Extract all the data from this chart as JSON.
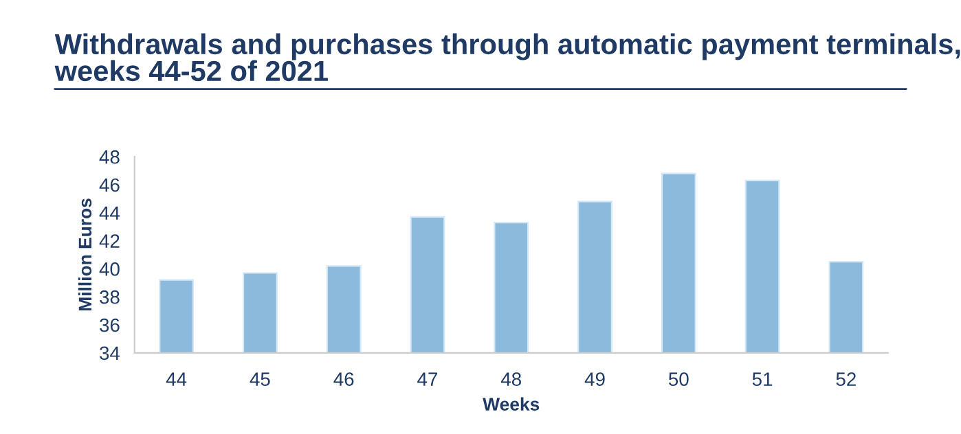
{
  "chart_data": {
    "type": "bar",
    "title": "Withdrawals and purchases through automatic payment terminals,\nweeks 44-52 of 2021",
    "xlabel": "Weeks",
    "ylabel": "Million Euros",
    "categories": [
      "44",
      "45",
      "46",
      "47",
      "48",
      "49",
      "50",
      "51",
      "52"
    ],
    "values": [
      39.2,
      39.7,
      40.2,
      43.7,
      43.3,
      44.8,
      46.8,
      46.3,
      40.5
    ],
    "color": "#8bbadc",
    "ylim": [
      34,
      48
    ],
    "yticks": [
      34,
      36,
      38,
      40,
      42,
      44,
      46,
      48
    ],
    "grid": false
  }
}
